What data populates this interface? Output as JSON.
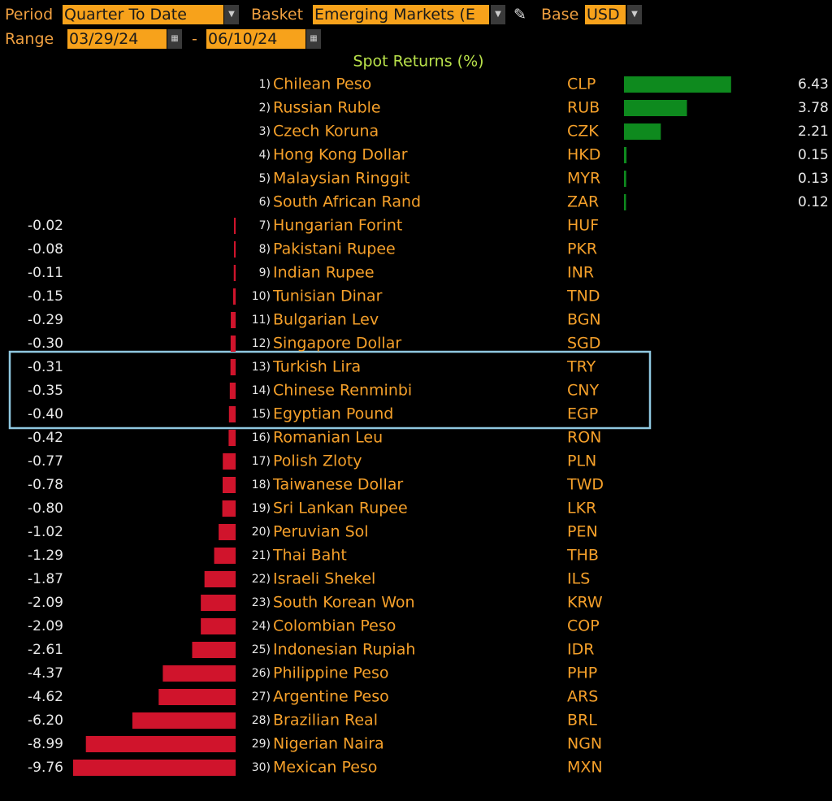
{
  "toolbar": {
    "period_label": "Period",
    "period": "Quarter To Date",
    "basket_label": "Basket",
    "basket": "Emerging Markets (E",
    "base_label": "Base",
    "base": "USD",
    "range_label": "Range",
    "start": "03/29/24",
    "separator": "-",
    "end": "06/10/24"
  },
  "chart_data": {
    "type": "bar",
    "title": "Spot Returns (%)",
    "ranks": [
      "1)",
      "2)",
      "3)",
      "4)",
      "5)",
      "6)",
      "7)",
      "8)",
      "9)",
      "10)",
      "11)",
      "12)",
      "13)",
      "14)",
      "15)",
      "16)",
      "17)",
      "18)",
      "19)",
      "20)",
      "21)",
      "22)",
      "23)",
      "24)",
      "25)",
      "26)",
      "27)",
      "28)",
      "29)",
      "30)"
    ],
    "categories": [
      "Chilean Peso",
      "Russian Ruble",
      "Czech Koruna",
      "Hong Kong Dollar",
      "Malaysian Ringgit",
      "South African Rand",
      "Hungarian Forint",
      "Pakistani Rupee",
      "Indian Rupee",
      "Tunisian Dinar",
      "Bulgarian Lev",
      "Singapore Dollar",
      "Turkish Lira",
      "Chinese Renminbi",
      "Egyptian Pound",
      "Romanian Leu",
      "Polish Zloty",
      "Taiwanese Dollar",
      "Sri Lankan Rupee",
      "Peruvian Sol",
      "Thai Baht",
      "Israeli Shekel",
      "South Korean Won",
      "Colombian Peso",
      "Indonesian Rupiah",
      "Philippine Peso",
      "Argentine Peso",
      "Brazilian Real",
      "Nigerian Naira",
      "Mexican Peso"
    ],
    "codes": [
      "CLP",
      "RUB",
      "CZK",
      "HKD",
      "MYR",
      "ZAR",
      "HUF",
      "PKR",
      "INR",
      "TND",
      "BGN",
      "SGD",
      "TRY",
      "CNY",
      "EGP",
      "RON",
      "PLN",
      "TWD",
      "LKR",
      "PEN",
      "THB",
      "ILS",
      "KRW",
      "COP",
      "IDR",
      "PHP",
      "ARS",
      "BRL",
      "NGN",
      "MXN"
    ],
    "values": [
      6.43,
      3.78,
      2.21,
      0.15,
      0.13,
      0.12,
      -0.02,
      -0.08,
      -0.11,
      -0.15,
      -0.29,
      -0.3,
      -0.31,
      -0.35,
      -0.4,
      -0.42,
      -0.77,
      -0.78,
      -0.8,
      -1.02,
      -1.29,
      -1.87,
      -2.09,
      -2.09,
      -2.61,
      -4.37,
      -4.62,
      -6.2,
      -8.99,
      -9.76
    ],
    "value_labels": [
      "6.43",
      "3.78",
      "2.21",
      "0.15",
      "0.13",
      "0.12",
      "-0.02",
      "-0.08",
      "-0.11",
      "-0.15",
      "-0.29",
      "-0.30",
      "-0.31",
      "-0.35",
      "-0.40",
      "-0.42",
      "-0.77",
      "-0.78",
      "-0.80",
      "-1.02",
      "-1.29",
      "-1.87",
      "-2.09",
      "-2.09",
      "-2.61",
      "-4.37",
      "-4.62",
      "-6.20",
      "-8.99",
      "-9.76"
    ],
    "positive_color": "#0e8a1e",
    "negative_color": "#d0142c"
  }
}
